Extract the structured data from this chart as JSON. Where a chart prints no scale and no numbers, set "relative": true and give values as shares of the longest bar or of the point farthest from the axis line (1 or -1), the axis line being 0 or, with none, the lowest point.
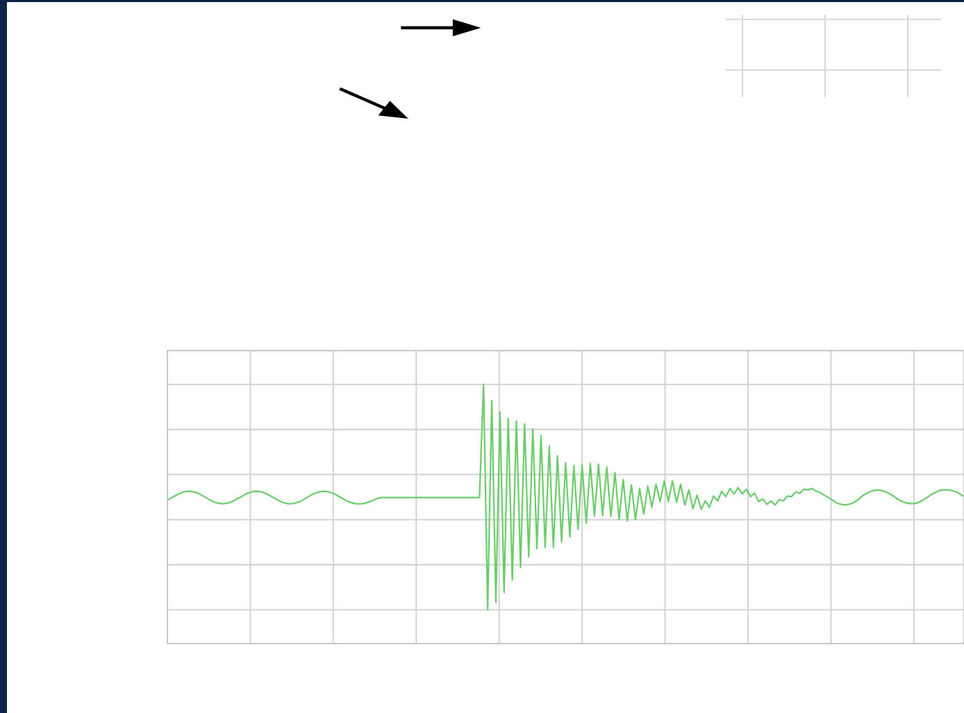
{
  "chart_data": {
    "type": "line",
    "relative": true,
    "grid": true,
    "categories": [
      null,
      null,
      null,
      null,
      null,
      null,
      null,
      null,
      null,
      null,
      null,
      null,
      null,
      null,
      null,
      null,
      null,
      null,
      null,
      null,
      null,
      null,
      null,
      null,
      null,
      null,
      null,
      null,
      null,
      null,
      null,
      null,
      null,
      null,
      null,
      null,
      null,
      null,
      null,
      null,
      null,
      null,
      null,
      null,
      null,
      null,
      null,
      null,
      null,
      null,
      null,
      null,
      null,
      null,
      null,
      null,
      null,
      null,
      null,
      null,
      null,
      null,
      null,
      null,
      null,
      null,
      null,
      null,
      null,
      null,
      null,
      null,
      null,
      null,
      null,
      null,
      null,
      null,
      null,
      null,
      null,
      null,
      null,
      null,
      null,
      null,
      null,
      null,
      null,
      null,
      null,
      null,
      null,
      null,
      null,
      null,
      null,
      null,
      null,
      null,
      null,
      null,
      null,
      null,
      null,
      null,
      null,
      null,
      null,
      null,
      null,
      null,
      null,
      null,
      null,
      null,
      null,
      null,
      null,
      null,
      null,
      null,
      null,
      null,
      null,
      null,
      null,
      null,
      null,
      null,
      null,
      null,
      null,
      null,
      null,
      null,
      null,
      null,
      null,
      null,
      null,
      null,
      null,
      null,
      null,
      null,
      null,
      null,
      null,
      null,
      null,
      null,
      null,
      null,
      null,
      null,
      null,
      null,
      null,
      null,
      null,
      null,
      null,
      null,
      null,
      null,
      null,
      null,
      null,
      null,
      null,
      null,
      null,
      null,
      null,
      null,
      null,
      null,
      null,
      null,
      null,
      null,
      null,
      null,
      null,
      null,
      null,
      null,
      null,
      null,
      null,
      null,
      null,
      null,
      null
    ],
    "series": [
      {
        "color": "#6acd6a",
        "values": [
          0.486,
          0.497,
          0.507,
          0.516,
          0.523,
          0.526,
          0.525,
          0.52,
          0.512,
          0.502,
          0.491,
          0.481,
          0.474,
          0.471,
          0.471,
          0.475,
          0.482,
          0.492,
          0.502,
          0.513,
          0.52,
          0.525,
          0.526,
          0.523,
          0.516,
          0.506,
          0.496,
          0.486,
          0.477,
          0.472,
          0.47,
          0.473,
          0.478,
          0.487,
          0.498,
          0.509,
          0.517,
          0.523,
          0.526,
          0.524,
          0.519,
          0.511,
          0.501,
          0.49,
          0.481,
          0.474,
          0.47,
          0.47,
          0.472,
          0.478,
          0.485,
          0.493,
          0.498,
          0.498,
          0.498,
          0.498,
          0.498,
          0.498,
          0.498,
          0.498,
          0.498,
          0.498,
          0.498,
          0.498,
          0.498,
          0.498,
          0.498,
          0.498,
          0.498,
          0.498,
          0.498,
          0.498,
          0.498,
          0.498,
          0.498,
          0.498,
          0.498,
          1.0,
          0.0,
          0.929,
          0.034,
          0.877,
          0.077,
          0.849,
          0.132,
          0.837,
          0.188,
          0.825,
          0.234,
          0.803,
          0.271,
          0.772,
          0.277,
          0.726,
          0.277,
          0.683,
          0.302,
          0.652,
          0.323,
          0.64,
          0.357,
          0.643,
          0.385,
          0.649,
          0.415,
          0.646,
          0.418,
          0.634,
          0.415,
          0.609,
          0.4,
          0.578,
          0.394,
          0.554,
          0.4,
          0.538,
          0.425,
          0.548,
          0.455,
          0.557,
          0.48,
          0.572,
          0.48,
          0.572,
          0.477,
          0.557,
          0.465,
          0.532,
          0.449,
          0.508,
          0.446,
          0.483,
          0.455,
          0.505,
          0.483,
          0.526,
          0.502,
          0.538,
          0.514,
          0.542,
          0.514,
          0.535,
          0.502,
          0.517,
          0.48,
          0.492,
          0.468,
          0.483,
          0.465,
          0.489,
          0.483,
          0.505,
          0.502,
          0.523,
          0.517,
          0.535,
          0.532,
          0.538,
          0.526,
          0.52,
          0.508,
          0.498,
          0.486,
          0.474,
          0.468,
          0.465,
          0.468,
          0.474,
          0.486,
          0.502,
          0.514,
          0.523,
          0.529,
          0.532,
          0.529,
          0.523,
          0.514,
          0.502,
          0.489,
          0.48,
          0.474,
          0.471,
          0.471,
          0.477,
          0.486,
          0.498,
          0.511,
          0.52,
          0.529,
          0.532,
          0.532,
          0.529,
          0.523,
          0.514,
          0.502
        ]
      }
    ]
  }
}
